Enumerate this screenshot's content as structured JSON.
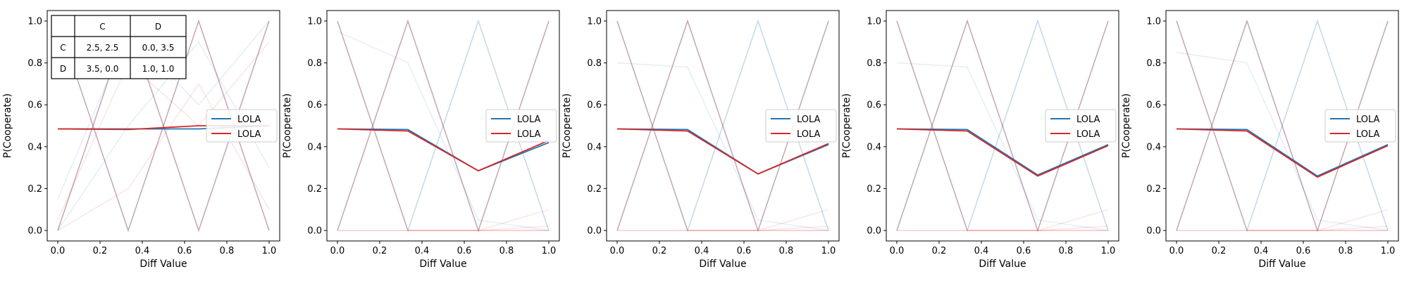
{
  "chart_data": [
    {
      "type": "line",
      "xlabel": "Diff Value",
      "ylabel": "P(Cooperate)",
      "xlim": [
        -0.05,
        1.05
      ],
      "ylim": [
        -0.05,
        1.05
      ],
      "x": [
        0.0,
        0.3333,
        0.6667,
        1.0
      ],
      "xticks": [
        "0.0",
        "0.2",
        "0.4",
        "0.6",
        "0.8",
        "1.0"
      ],
      "yticks": [
        "0.0",
        "0.2",
        "0.4",
        "0.6",
        "0.8",
        "1.0"
      ],
      "legend_position": "center-right",
      "series": [
        {
          "name": "LOLA",
          "color": "#1f77b4",
          "values": [
            0.485,
            0.485,
            0.485,
            0.5
          ]
        },
        {
          "name": "LOLA",
          "color": "#d62728",
          "values": [
            0.485,
            0.482,
            0.5,
            0.5
          ]
        }
      ],
      "background_lines": {
        "blue": [
          [
            1.0,
            0.0,
            1.0,
            0.0
          ],
          [
            0.0,
            1.0,
            0.0,
            1.0
          ],
          [
            0.15,
            0.95,
            0.6,
            1.0
          ],
          [
            0.0,
            0.5,
            0.9,
            0.3
          ]
        ],
        "red": [
          [
            1.0,
            0.0,
            1.0,
            0.0
          ],
          [
            0.0,
            1.0,
            0.0,
            1.0
          ],
          [
            0.05,
            0.8,
            0.5,
            0.9
          ],
          [
            0.0,
            0.2,
            0.7,
            0.1
          ]
        ]
      },
      "payoff_table": {
        "col_headers": [
          "C",
          "D"
        ],
        "rows": [
          {
            "label": "C",
            "cells": [
              "2.5, 2.5",
              "0.0, 3.5"
            ]
          },
          {
            "label": "D",
            "cells": [
              "3.5, 0.0",
              "1.0, 1.0"
            ]
          }
        ]
      }
    },
    {
      "type": "line",
      "xlabel": "Diff Value",
      "ylabel": "P(Cooperate)",
      "xlim": [
        -0.05,
        1.05
      ],
      "ylim": [
        -0.05,
        1.05
      ],
      "x": [
        0.0,
        0.3333,
        0.6667,
        1.0
      ],
      "xticks": [
        "0.0",
        "0.2",
        "0.4",
        "0.6",
        "0.8",
        "1.0"
      ],
      "yticks": [
        "0.0",
        "0.2",
        "0.4",
        "0.6",
        "0.8",
        "1.0"
      ],
      "legend_position": "center-right",
      "series": [
        {
          "name": "LOLA",
          "color": "#1f77b4",
          "values": [
            0.485,
            0.482,
            0.285,
            0.42
          ]
        },
        {
          "name": "LOLA",
          "color": "#d62728",
          "values": [
            0.485,
            0.475,
            0.285,
            0.43
          ]
        }
      ],
      "background_lines": {
        "blue": [
          [
            1.0,
            0.0,
            1.0,
            0.0
          ],
          [
            0.0,
            1.0,
            0.0,
            1.0
          ],
          [
            0.95,
            0.8,
            0.05,
            0.0
          ]
        ],
        "red": [
          [
            1.0,
            0.0,
            0.0,
            0.0
          ],
          [
            0.0,
            1.0,
            0.0,
            1.0
          ],
          [
            0.0,
            0.0,
            0.0,
            0.1
          ],
          [
            0.0,
            0.0,
            0.0,
            0.02
          ]
        ]
      }
    },
    {
      "type": "line",
      "xlabel": "Diff Value",
      "ylabel": "P(Cooperate)",
      "xlim": [
        -0.05,
        1.05
      ],
      "ylim": [
        -0.05,
        1.05
      ],
      "x": [
        0.0,
        0.3333,
        0.6667,
        1.0
      ],
      "xticks": [
        "0.0",
        "0.2",
        "0.4",
        "0.6",
        "0.8",
        "1.0"
      ],
      "yticks": [
        "0.0",
        "0.2",
        "0.4",
        "0.6",
        "0.8",
        "1.0"
      ],
      "legend_position": "center-right",
      "series": [
        {
          "name": "LOLA",
          "color": "#1f77b4",
          "values": [
            0.485,
            0.482,
            0.27,
            0.41
          ]
        },
        {
          "name": "LOLA",
          "color": "#d62728",
          "values": [
            0.485,
            0.475,
            0.27,
            0.415
          ]
        }
      ],
      "background_lines": {
        "blue": [
          [
            1.0,
            0.0,
            1.0,
            0.0
          ],
          [
            0.0,
            1.0,
            0.0,
            1.0
          ],
          [
            0.8,
            0.78,
            0.05,
            0.0
          ]
        ],
        "red": [
          [
            1.0,
            0.0,
            0.0,
            0.0
          ],
          [
            0.0,
            1.0,
            0.0,
            1.0
          ],
          [
            0.0,
            0.0,
            0.0,
            0.1
          ],
          [
            0.0,
            0.0,
            0.0,
            0.02
          ]
        ]
      }
    },
    {
      "type": "line",
      "xlabel": "Diff Value",
      "ylabel": "P(Cooperate)",
      "xlim": [
        -0.05,
        1.05
      ],
      "ylim": [
        -0.05,
        1.05
      ],
      "x": [
        0.0,
        0.3333,
        0.6667,
        1.0
      ],
      "xticks": [
        "0.0",
        "0.2",
        "0.4",
        "0.6",
        "0.8",
        "1.0"
      ],
      "yticks": [
        "0.0",
        "0.2",
        "0.4",
        "0.6",
        "0.8",
        "1.0"
      ],
      "legend_position": "center-right",
      "series": [
        {
          "name": "LOLA",
          "color": "#1f77b4",
          "values": [
            0.485,
            0.482,
            0.265,
            0.41
          ]
        },
        {
          "name": "LOLA",
          "color": "#d62728",
          "values": [
            0.485,
            0.475,
            0.26,
            0.405
          ]
        }
      ],
      "background_lines": {
        "blue": [
          [
            1.0,
            0.0,
            1.0,
            0.0
          ],
          [
            0.0,
            1.0,
            0.0,
            1.0
          ],
          [
            0.8,
            0.78,
            0.05,
            0.0
          ]
        ],
        "red": [
          [
            1.0,
            0.0,
            0.0,
            0.0
          ],
          [
            0.0,
            1.0,
            0.0,
            1.0
          ],
          [
            0.0,
            0.0,
            0.0,
            0.1
          ],
          [
            0.0,
            0.0,
            0.0,
            0.02
          ]
        ]
      }
    },
    {
      "type": "line",
      "xlabel": "Diff Value",
      "ylabel": "P(Cooperate)",
      "xlim": [
        -0.05,
        1.05
      ],
      "ylim": [
        -0.05,
        1.05
      ],
      "x": [
        0.0,
        0.3333,
        0.6667,
        1.0
      ],
      "xticks": [
        "0.0",
        "0.2",
        "0.4",
        "0.6",
        "0.8",
        "1.0"
      ],
      "yticks": [
        "0.0",
        "0.2",
        "0.4",
        "0.6",
        "0.8",
        "1.0"
      ],
      "legend_position": "center-right",
      "series": [
        {
          "name": "LOLA",
          "color": "#1f77b4",
          "values": [
            0.485,
            0.482,
            0.26,
            0.41
          ]
        },
        {
          "name": "LOLA",
          "color": "#d62728",
          "values": [
            0.485,
            0.475,
            0.255,
            0.405
          ]
        }
      ],
      "background_lines": {
        "blue": [
          [
            1.0,
            0.0,
            1.0,
            0.0
          ],
          [
            0.0,
            1.0,
            0.0,
            1.0
          ],
          [
            0.85,
            0.8,
            0.05,
            0.0
          ]
        ],
        "red": [
          [
            1.0,
            0.0,
            0.0,
            0.0
          ],
          [
            0.0,
            1.0,
            0.0,
            1.0
          ],
          [
            0.0,
            0.0,
            0.0,
            0.1
          ],
          [
            0.0,
            0.0,
            0.0,
            0.02
          ]
        ]
      }
    }
  ]
}
